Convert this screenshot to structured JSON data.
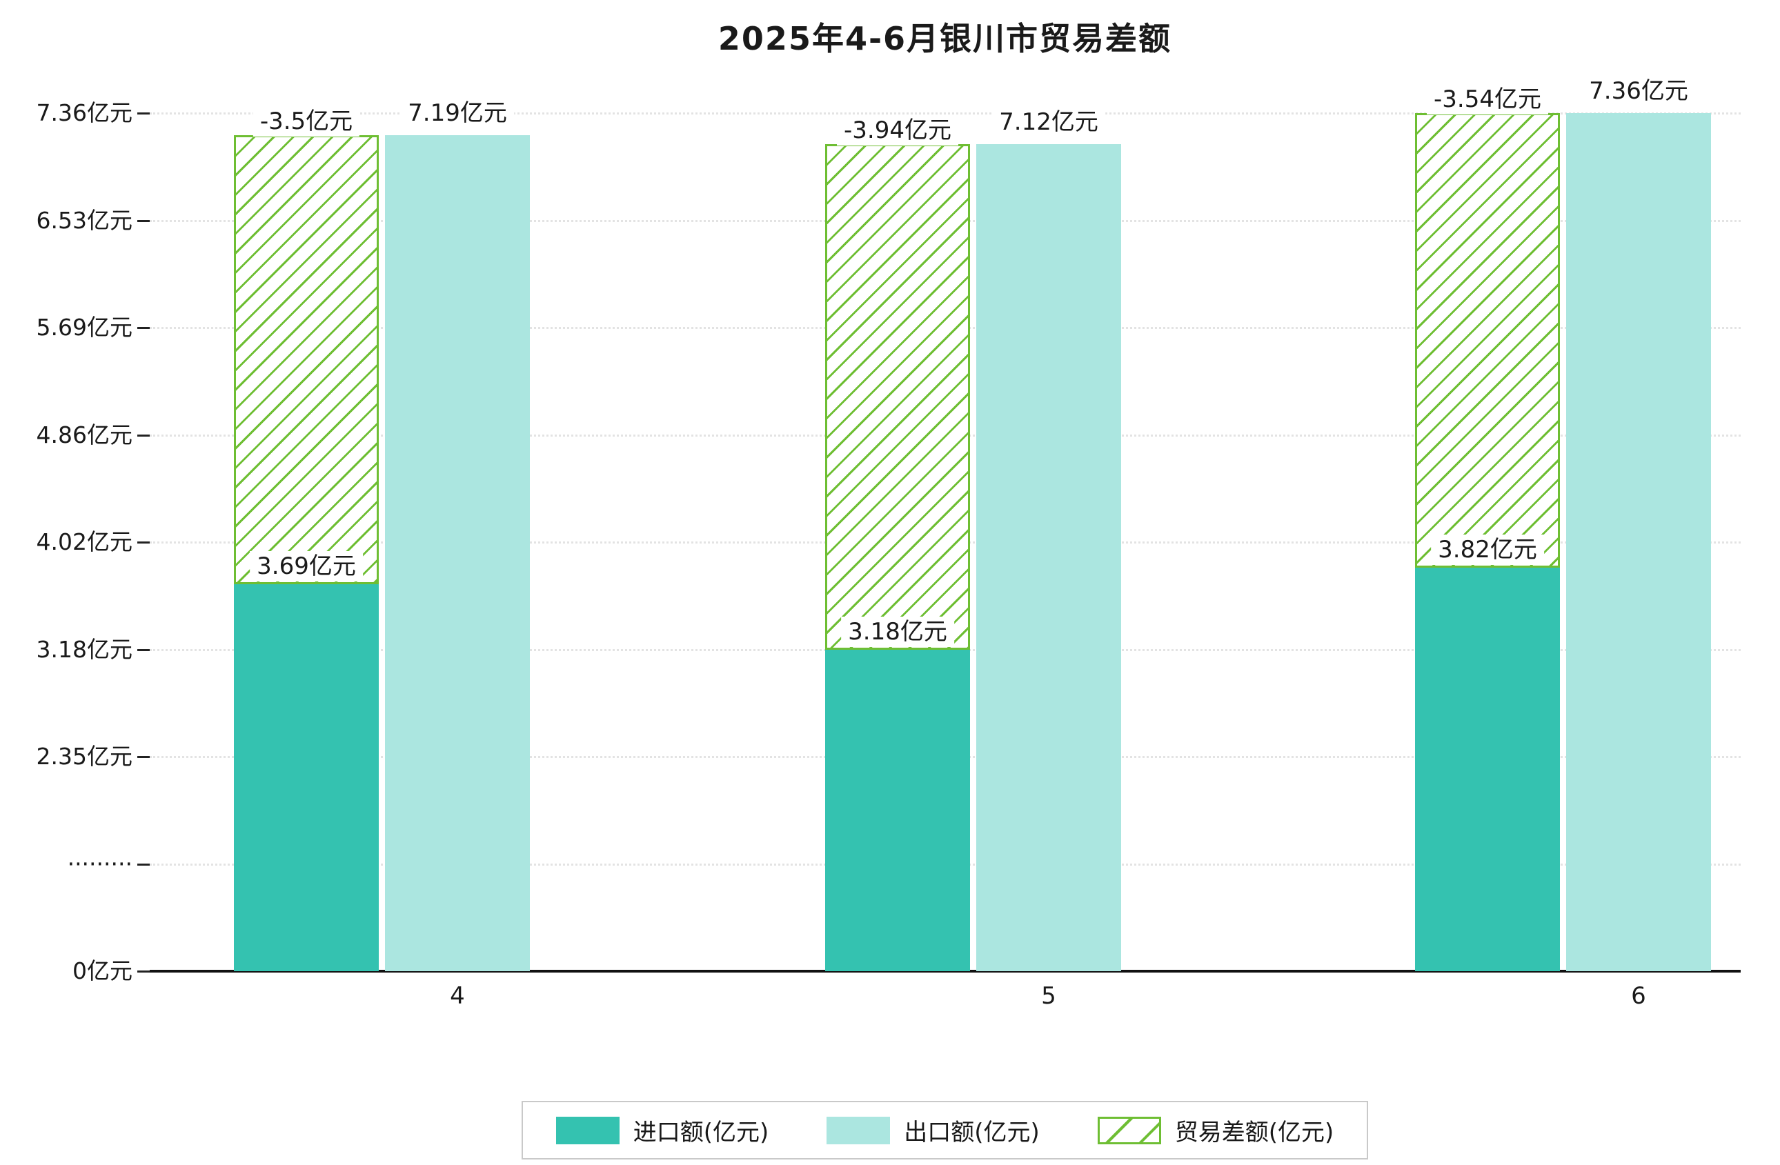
{
  "title": "2025年4-6月银川市贸易差额",
  "chart_data": {
    "type": "bar",
    "title": "2025年4-6月银川市贸易差额",
    "categories": [
      "4",
      "5",
      "6"
    ],
    "series": [
      {
        "name": "进口额(亿元)",
        "values": [
          3.69,
          3.18,
          3.82
        ],
        "labels": [
          "3.69亿元",
          "3.18亿元",
          "3.82亿元"
        ]
      },
      {
        "name": "出口额(亿元)",
        "values": [
          7.19,
          7.12,
          7.36
        ],
        "labels": [
          "7.19亿元",
          "7.12亿元",
          "7.36亿元"
        ]
      },
      {
        "name": "贸易差额(亿元)",
        "values": [
          -3.5,
          -3.94,
          -3.54
        ],
        "labels": [
          "-3.5亿元",
          "-3.94亿元",
          "-3.54亿元"
        ],
        "style": "hatched-overlay-stacked-on-imports"
      }
    ],
    "yticks": [
      {
        "label": "7.36亿元",
        "value": 7.36
      },
      {
        "label": "6.53亿元",
        "value": 6.53
      },
      {
        "label": "5.69亿元",
        "value": 5.69
      },
      {
        "label": "4.86亿元",
        "value": 4.86
      },
      {
        "label": "4.02亿元",
        "value": 4.02
      },
      {
        "label": "3.18亿元",
        "value": 3.18
      },
      {
        "label": "2.35亿元",
        "value": 2.35
      },
      {
        "label": "·········",
        "value": null
      },
      {
        "label": "0亿元",
        "value": 0
      }
    ],
    "xlabel": "",
    "ylabel": "",
    "ylim": [
      0,
      7.36
    ],
    "axis_break": true,
    "grid": "dotted-horizontal",
    "legend_position": "bottom"
  },
  "legend": {
    "items": [
      {
        "key": "imports",
        "label": "进口额(亿元)",
        "swatch": "solid-import"
      },
      {
        "key": "exports",
        "label": "出口额(亿元)",
        "swatch": "solid-export"
      },
      {
        "key": "balance",
        "label": "贸易差额(亿元)",
        "swatch": "hatched-balance"
      }
    ]
  },
  "colors": {
    "import": "#34c2b0",
    "export": "#abe6e0",
    "balance": "#6ebe33",
    "text": "#1a1a1a",
    "grid": "#e3e3e3",
    "axis": "#111111",
    "legend_border": "#c9c9c9",
    "background": "#ffffff"
  }
}
